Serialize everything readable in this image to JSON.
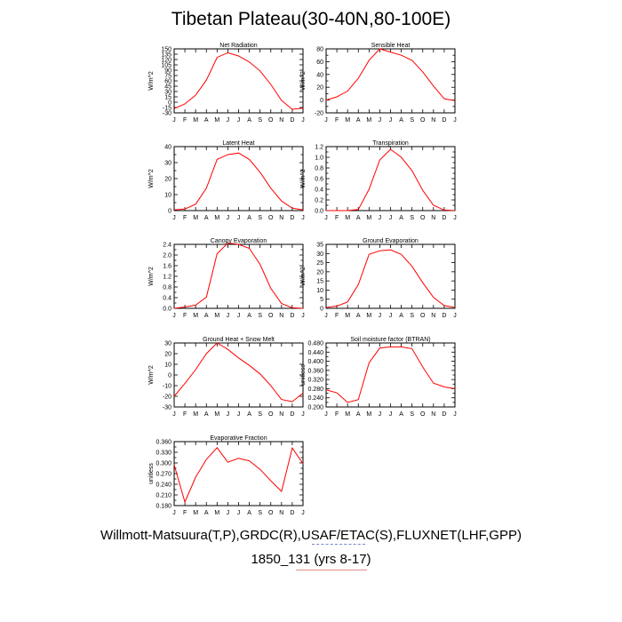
{
  "page": {
    "title": "Tibetan Plateau(30-40N,80-100E)",
    "footer_line1": "Willmott-Matsuura(T,P),GRDC(R),USAF/ETAC(S),FLUXNET(LHF,GPP)",
    "footer_line2": "1850_131 (yrs 8-17)"
  },
  "colors": {
    "line": "#ff0000",
    "axis": "#000000"
  },
  "chart_data": [
    {
      "type": "line",
      "title": "Net Radiation",
      "ylabel": "W/m^2",
      "x": [
        "J",
        "F",
        "M",
        "A",
        "M",
        "J",
        "J",
        "A",
        "S",
        "O",
        "N",
        "D",
        "J"
      ],
      "ylim": [
        -30,
        150
      ],
      "yticks": [
        -30,
        -15,
        0,
        15,
        30,
        45,
        60,
        75,
        90,
        105,
        120,
        135,
        150
      ],
      "ytick_labels": [
        "-30",
        "-15",
        "0",
        "15",
        "30",
        "45",
        "60",
        "75",
        "90",
        "105",
        "120",
        "135",
        "150"
      ],
      "series": [
        {
          "values": [
            -18,
            -5,
            20,
            62,
            126,
            139,
            130,
            113,
            88,
            50,
            5,
            -20,
            -17
          ]
        }
      ]
    },
    {
      "type": "line",
      "title": "Sensible Heat",
      "ylabel": "W/m^2",
      "x": [
        "J",
        "F",
        "M",
        "A",
        "M",
        "J",
        "J",
        "A",
        "S",
        "O",
        "N",
        "D",
        "J"
      ],
      "ylim": [
        -20,
        80
      ],
      "yticks": [
        -20,
        -10,
        0,
        10,
        20,
        30,
        40,
        50,
        60,
        70,
        80
      ],
      "ytick_labels": [
        "-20",
        "",
        "0",
        "",
        "20",
        "",
        "40",
        "",
        "60",
        "",
        "80"
      ],
      "series": [
        {
          "values": [
            0,
            5,
            14,
            34,
            62,
            80,
            75,
            70,
            62,
            44,
            22,
            2,
            -1
          ]
        }
      ]
    },
    {
      "type": "line",
      "title": "Latent Heat",
      "ylabel": "W/m^2",
      "x": [
        "J",
        "F",
        "M",
        "A",
        "M",
        "J",
        "J",
        "A",
        "S",
        "O",
        "N",
        "D",
        "J"
      ],
      "ylim": [
        0,
        40
      ],
      "yticks": [
        0,
        5,
        10,
        15,
        20,
        25,
        30,
        35,
        40
      ],
      "ytick_labels": [
        "0",
        "",
        "10",
        "",
        "20",
        "",
        "30",
        "",
        "40"
      ],
      "series": [
        {
          "values": [
            0.5,
            1,
            4,
            14,
            32,
            35,
            36,
            32,
            24,
            14,
            6,
            1.5,
            0.5
          ]
        }
      ]
    },
    {
      "type": "line",
      "title": "Transpiration",
      "ylabel": "W/m^2",
      "x": [
        "J",
        "F",
        "M",
        "A",
        "M",
        "J",
        "J",
        "A",
        "S",
        "O",
        "N",
        "D",
        "J"
      ],
      "ylim": [
        0,
        1.2
      ],
      "yticks": [
        0,
        0.1,
        0.2,
        0.3,
        0.4,
        0.5,
        0.6,
        0.7,
        0.8,
        0.9,
        1.0,
        1.1,
        1.2
      ],
      "ytick_labels": [
        "0.0",
        "",
        "0.2",
        "",
        "0.4",
        "",
        "0.6",
        "",
        "0.8",
        "",
        "1.0",
        "",
        "1.2"
      ],
      "series": [
        {
          "values": [
            0.0,
            0.0,
            0.0,
            0.02,
            0.4,
            0.95,
            1.15,
            1.0,
            0.75,
            0.38,
            0.1,
            0.01,
            0.0
          ]
        }
      ]
    },
    {
      "type": "line",
      "title": "Canopy Evaporation",
      "ylabel": "W/m^2",
      "x": [
        "J",
        "F",
        "M",
        "A",
        "M",
        "J",
        "J",
        "A",
        "S",
        "O",
        "N",
        "D",
        "J"
      ],
      "ylim": [
        0,
        2.4
      ],
      "yticks": [
        0,
        0.2,
        0.4,
        0.6,
        0.8,
        1.0,
        1.2,
        1.4,
        1.6,
        1.8,
        2.0,
        2.2,
        2.4
      ],
      "ytick_labels": [
        "0.0",
        "",
        "0.4",
        "",
        "0.8",
        "",
        "1.2",
        "",
        "1.6",
        "",
        "2.0",
        "",
        "2.4"
      ],
      "series": [
        {
          "values": [
            0.0,
            0.05,
            0.12,
            0.42,
            2.05,
            2.45,
            2.4,
            2.25,
            1.65,
            0.75,
            0.18,
            0.02,
            0.0
          ]
        }
      ]
    },
    {
      "type": "line",
      "title": "Ground Evaporation",
      "ylabel": "W/m^2",
      "x": [
        "J",
        "F",
        "M",
        "A",
        "M",
        "J",
        "J",
        "A",
        "S",
        "O",
        "N",
        "D",
        "J"
      ],
      "ylim": [
        0,
        35
      ],
      "yticks": [
        0,
        5,
        10,
        15,
        20,
        25,
        30,
        35
      ],
      "ytick_labels": [
        "0",
        "5",
        "10",
        "15",
        "20",
        "25",
        "30",
        "35"
      ],
      "series": [
        {
          "values": [
            0.5,
            1.2,
            3.5,
            13,
            29.5,
            31.5,
            32,
            29.5,
            23,
            14,
            6,
            1.5,
            0.5
          ]
        }
      ]
    },
    {
      "type": "line",
      "title": "Ground Heat + Snow Melt",
      "ylabel": "W/m^2",
      "x": [
        "J",
        "F",
        "M",
        "A",
        "M",
        "J",
        "J",
        "A",
        "S",
        "O",
        "N",
        "D",
        "J"
      ],
      "ylim": [
        -30,
        30
      ],
      "yticks": [
        -30,
        -20,
        -10,
        0,
        10,
        20,
        30
      ],
      "ytick_labels": [
        "-30",
        "-20",
        "-10",
        "0",
        "10",
        "20",
        "30"
      ],
      "series": [
        {
          "values": [
            -20,
            -8,
            5,
            20,
            30,
            24,
            16,
            9,
            1,
            -10,
            -23,
            -25,
            -17
          ]
        }
      ]
    },
    {
      "type": "line",
      "title": "Soil moisture factor (BTRAN)",
      "ylabel": "unitless",
      "x": [
        "J",
        "F",
        "M",
        "A",
        "M",
        "J",
        "J",
        "A",
        "S",
        "O",
        "N",
        "D",
        "J"
      ],
      "ylim": [
        0.2,
        0.48
      ],
      "yticks": [
        0.2,
        0.22,
        0.24,
        0.26,
        0.28,
        0.3,
        0.32,
        0.34,
        0.36,
        0.38,
        0.4,
        0.42,
        0.44,
        0.46,
        0.48
      ],
      "ytick_labels": [
        "0.200",
        "",
        "0.240",
        "",
        "0.280",
        "",
        "0.320",
        "",
        "0.360",
        "",
        "0.400",
        "",
        "0.440",
        "",
        "0.480"
      ],
      "series": [
        {
          "values": [
            0.275,
            0.262,
            0.22,
            0.232,
            0.393,
            0.458,
            0.463,
            0.463,
            0.455,
            0.375,
            0.304,
            0.288,
            0.28
          ]
        }
      ]
    },
    {
      "type": "line",
      "title": "Evaporative Fraction",
      "ylabel": "unitless",
      "x": [
        "J",
        "F",
        "M",
        "A",
        "M",
        "J",
        "J",
        "A",
        "S",
        "O",
        "N",
        "D",
        "J"
      ],
      "ylim": [
        0.18,
        0.36
      ],
      "yticks": [
        0.18,
        0.195,
        0.21,
        0.225,
        0.24,
        0.255,
        0.27,
        0.285,
        0.3,
        0.315,
        0.33,
        0.345,
        0.36
      ],
      "ytick_labels": [
        "0.180",
        "",
        "0.210",
        "",
        "0.240",
        "",
        "0.270",
        "",
        "0.300",
        "",
        "0.330",
        "",
        "0.360"
      ],
      "series": [
        {
          "values": [
            0.295,
            0.19,
            0.26,
            0.31,
            0.343,
            0.302,
            0.313,
            0.306,
            0.282,
            0.25,
            0.22,
            0.342,
            0.298
          ]
        }
      ]
    }
  ]
}
